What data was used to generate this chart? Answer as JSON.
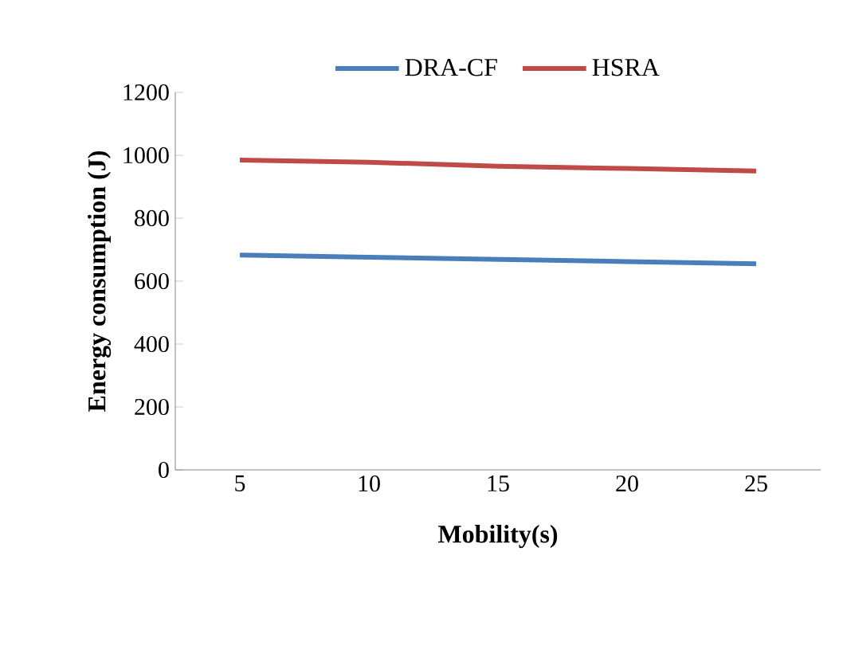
{
  "chart_data": {
    "type": "line",
    "xlabel": "Mobility(s)",
    "ylabel": "Energy consumption (J)",
    "categories": [
      "5",
      "10",
      "15",
      "20",
      "25"
    ],
    "series": [
      {
        "name": "DRA-CF",
        "color": "#4a7ebb",
        "values": [
          683,
          676,
          669,
          662,
          655
        ]
      },
      {
        "name": "HSRA",
        "color": "#be4b48",
        "values": [
          985,
          978,
          965,
          958,
          950
        ]
      }
    ],
    "ylim": [
      0,
      1200
    ],
    "yticks": [
      0,
      200,
      400,
      600,
      800,
      1000,
      1200
    ],
    "legend": "top",
    "grid": false,
    "marker": "none",
    "line_style": "solid"
  }
}
